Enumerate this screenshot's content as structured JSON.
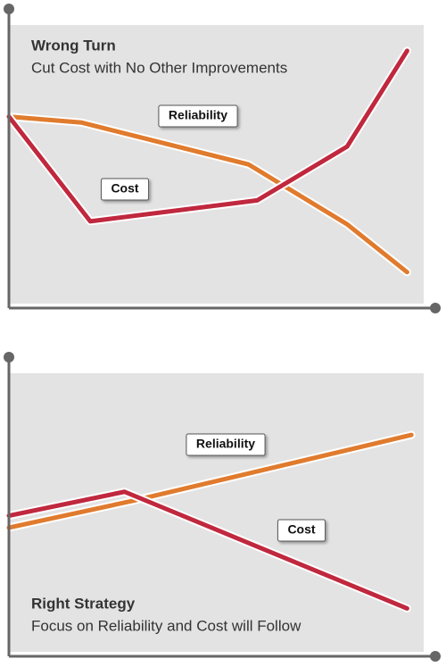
{
  "chart_data": [
    {
      "type": "line",
      "title": "Wrong Turn",
      "subtitle": "Cut Cost with No Other Improvements",
      "xlim": [
        0,
        100
      ],
      "ylim": [
        0,
        100
      ],
      "grid": false,
      "series": [
        {
          "name": "Reliability",
          "color": "#e07b2e",
          "x": [
            0,
            17,
            56,
            79,
            93
          ],
          "values": [
            64,
            62,
            48,
            28,
            12
          ]
        },
        {
          "name": "Cost",
          "color": "#c0283e",
          "x": [
            0,
            19,
            58,
            79,
            93
          ],
          "values": [
            64,
            29,
            36,
            54,
            86
          ]
        }
      ]
    },
    {
      "type": "line",
      "title": "Right Strategy",
      "subtitle": "Focus on Reliability and Cost will Follow",
      "xlim": [
        0,
        100
      ],
      "ylim": [
        0,
        100
      ],
      "grid": false,
      "series": [
        {
          "name": "Reliability",
          "color": "#e07b2e",
          "x": [
            0,
            29,
            94
          ],
          "values": [
            43,
            52,
            74
          ]
        },
        {
          "name": "Cost",
          "color": "#c0283e",
          "x": [
            0,
            27,
            93
          ],
          "values": [
            47,
            55,
            16
          ]
        }
      ]
    }
  ]
}
